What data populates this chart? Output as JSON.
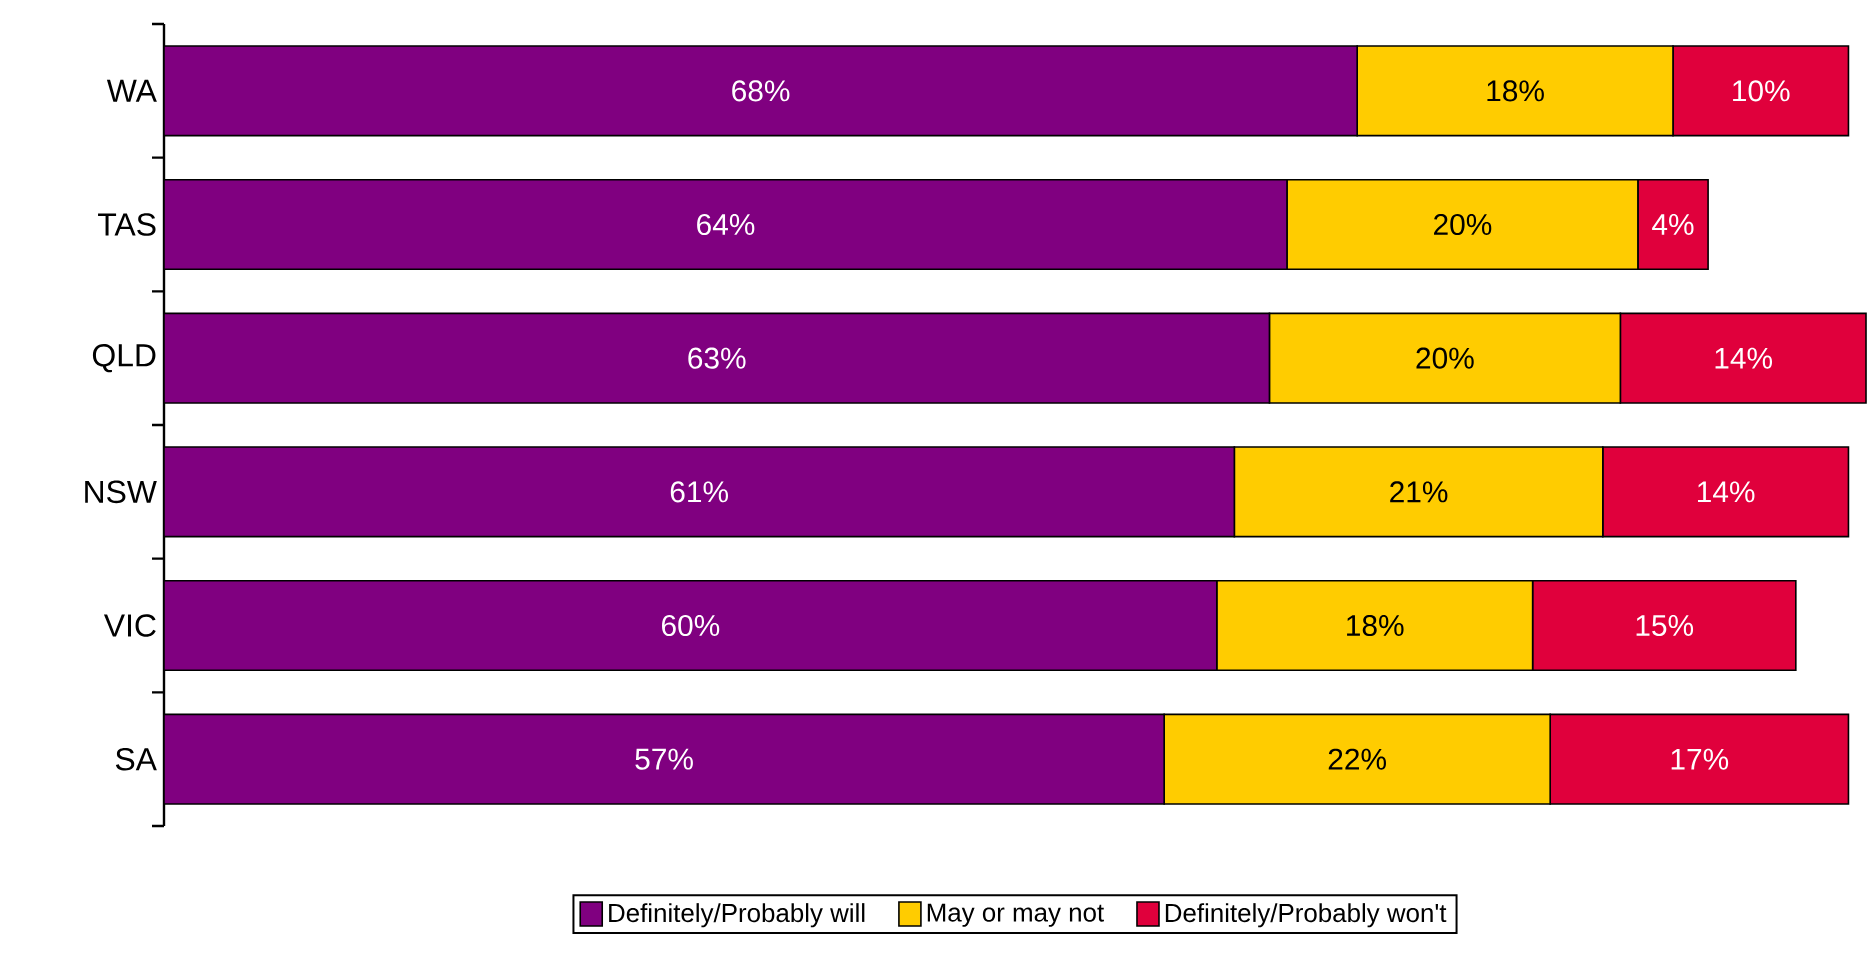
{
  "chart_data": {
    "type": "bar",
    "orientation": "horizontal",
    "stacked": true,
    "categories": [
      "WA",
      "TAS",
      "QLD",
      "NSW",
      "VIC",
      "SA"
    ],
    "series": [
      {
        "name": "Definitely/Probably will",
        "color": "#800080",
        "values": [
          68,
          64,
          63,
          61,
          60,
          57
        ],
        "value_labels": [
          "68%",
          "64%",
          "63%",
          "61%",
          "60%",
          "57%"
        ]
      },
      {
        "name": "May or may not",
        "color": "#ffcc00",
        "values": [
          18,
          20,
          20,
          21,
          18,
          22
        ],
        "value_labels": [
          "18%",
          "20%",
          "20%",
          "21%",
          "18%",
          "22%"
        ]
      },
      {
        "name": "Definitely/Probably won't",
        "color": "#e0003c",
        "values": [
          10,
          4,
          14,
          14,
          15,
          17
        ],
        "value_labels": [
          "10%",
          "4%",
          "14%",
          "14%",
          "15%",
          "17%"
        ]
      }
    ],
    "legend": "bottom"
  }
}
